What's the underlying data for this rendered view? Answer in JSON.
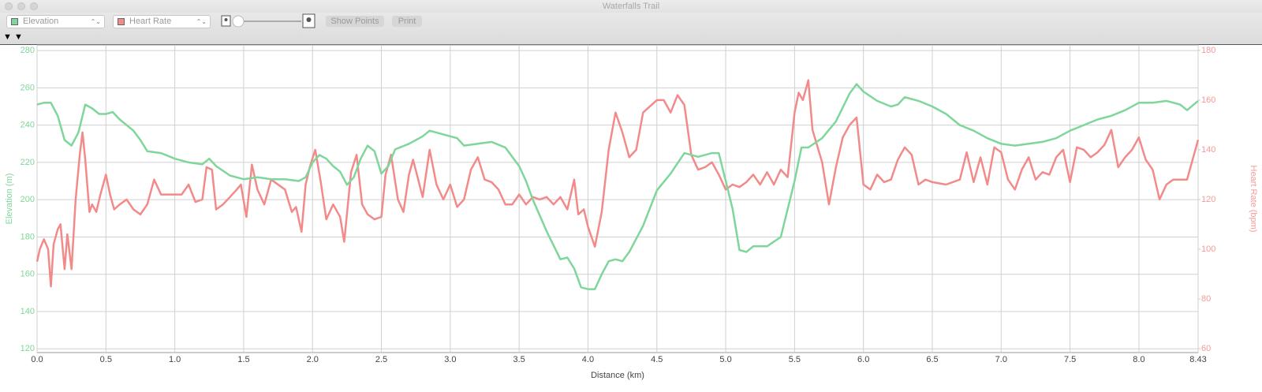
{
  "window": {
    "title": "Waterfalls Trail"
  },
  "toolbar": {
    "left_select": "Elevation",
    "right_select": "Heart Rate",
    "show_points": "Show Points",
    "print": "Print"
  },
  "chart_data": {
    "type": "line",
    "xlabel": "Distance (km)",
    "ylabel": "Elevation (m)",
    "y2label": "Heart Rate (bpm)",
    "xlim": [
      0,
      8.43
    ],
    "xticks": [
      {
        "value": 0,
        "label": "0.0"
      },
      0.5,
      {
        "value": 1,
        "label": "1.0"
      },
      1.5,
      {
        "value": 2,
        "label": "2.0"
      },
      2.5,
      {
        "value": 3,
        "label": "3.0"
      },
      3.5,
      {
        "value": 4,
        "label": "4.0"
      },
      4.5,
      {
        "value": 5,
        "label": "5.0"
      },
      5.5,
      {
        "value": 6,
        "label": "6.0"
      },
      6.5,
      {
        "value": 7,
        "label": "7.0"
      },
      7.5,
      {
        "value": 8,
        "label": "8.0"
      },
      8.43
    ],
    "ylim": [
      118,
      283
    ],
    "yticks": [
      120,
      140,
      160,
      180,
      200,
      220,
      240,
      260,
      280
    ],
    "y2lim": [
      58.4,
      182.2
    ],
    "y2ticks": [
      60,
      80,
      100,
      120,
      140,
      160,
      180
    ],
    "grid": true,
    "series": [
      {
        "name": "Elevation",
        "color": "#7fd69a",
        "x": [
          0,
          0.05,
          0.1,
          0.15,
          0.2,
          0.25,
          0.3,
          0.35,
          0.4,
          0.45,
          0.5,
          0.55,
          0.6,
          0.7,
          0.75,
          0.8,
          0.9,
          1.0,
          1.1,
          1.2,
          1.25,
          1.3,
          1.4,
          1.5,
          1.6,
          1.7,
          1.8,
          1.9,
          1.95,
          2.0,
          2.05,
          2.1,
          2.15,
          2.2,
          2.25,
          2.3,
          2.35,
          2.4,
          2.45,
          2.5,
          2.55,
          2.6,
          2.7,
          2.8,
          2.85,
          2.9,
          3.0,
          3.05,
          3.1,
          3.2,
          3.3,
          3.4,
          3.5,
          3.55,
          3.6,
          3.7,
          3.8,
          3.85,
          3.9,
          3.95,
          4.0,
          4.05,
          4.1,
          4.15,
          4.2,
          4.25,
          4.3,
          4.4,
          4.5,
          4.6,
          4.7,
          4.8,
          4.9,
          4.95,
          5.0,
          5.05,
          5.1,
          5.15,
          5.2,
          5.3,
          5.4,
          5.5,
          5.55,
          5.6,
          5.7,
          5.8,
          5.9,
          5.95,
          6.0,
          6.1,
          6.2,
          6.25,
          6.3,
          6.4,
          6.5,
          6.6,
          6.7,
          6.8,
          6.9,
          7.0,
          7.1,
          7.2,
          7.3,
          7.4,
          7.5,
          7.6,
          7.7,
          7.8,
          7.9,
          8.0,
          8.1,
          8.2,
          8.3,
          8.35,
          8.43
        ],
        "values": [
          251,
          252,
          252,
          245,
          232,
          229,
          236,
          251,
          249,
          246,
          246,
          247,
          243,
          237,
          232,
          226,
          225,
          222,
          220,
          219,
          222,
          218,
          213,
          211,
          212,
          211,
          211,
          210,
          212,
          220,
          224,
          222,
          218,
          215,
          208,
          212,
          222,
          229,
          226,
          214,
          218,
          227,
          230,
          234,
          237,
          236,
          234,
          233,
          229,
          230,
          231,
          228,
          218,
          210,
          200,
          183,
          168,
          169,
          163,
          153,
          152,
          152,
          160,
          167,
          168,
          167,
          172,
          186,
          205,
          214,
          225,
          223,
          225,
          225,
          210,
          195,
          173,
          172,
          175,
          175,
          180,
          210,
          228,
          228,
          233,
          242,
          257,
          262,
          258,
          253,
          250,
          251,
          255,
          253,
          250,
          246,
          240,
          237,
          233,
          230,
          229,
          230,
          231,
          233,
          237,
          240,
          243,
          245,
          248,
          252,
          252,
          253,
          251,
          248,
          253
        ]
      },
      {
        "name": "Heart Rate",
        "color": "#f38a8a",
        "axis": "y2",
        "x": [
          0,
          0.02,
          0.05,
          0.08,
          0.1,
          0.12,
          0.15,
          0.17,
          0.2,
          0.22,
          0.25,
          0.28,
          0.31,
          0.33,
          0.35,
          0.38,
          0.4,
          0.43,
          0.46,
          0.5,
          0.53,
          0.56,
          0.6,
          0.65,
          0.7,
          0.75,
          0.8,
          0.85,
          0.9,
          1.0,
          1.05,
          1.1,
          1.15,
          1.2,
          1.23,
          1.27,
          1.3,
          1.35,
          1.4,
          1.45,
          1.48,
          1.52,
          1.56,
          1.6,
          1.65,
          1.7,
          1.8,
          1.85,
          1.88,
          1.92,
          1.95,
          1.98,
          2.02,
          2.06,
          2.1,
          2.15,
          2.2,
          2.23,
          2.28,
          2.32,
          2.36,
          2.4,
          2.45,
          2.5,
          2.53,
          2.57,
          2.62,
          2.66,
          2.7,
          2.73,
          2.8,
          2.85,
          2.9,
          2.95,
          3.0,
          3.05,
          3.1,
          3.15,
          3.2,
          3.25,
          3.3,
          3.35,
          3.4,
          3.45,
          3.5,
          3.55,
          3.6,
          3.65,
          3.7,
          3.75,
          3.8,
          3.85,
          3.9,
          3.93,
          3.97,
          4.0,
          4.05,
          4.1,
          4.15,
          4.2,
          4.25,
          4.3,
          4.35,
          4.4,
          4.5,
          4.55,
          4.6,
          4.65,
          4.7,
          4.75,
          4.8,
          4.85,
          4.9,
          4.95,
          5.0,
          5.05,
          5.1,
          5.15,
          5.2,
          5.25,
          5.3,
          5.35,
          5.4,
          5.45,
          5.5,
          5.53,
          5.56,
          5.6,
          5.63,
          5.7,
          5.75,
          5.8,
          5.85,
          5.9,
          5.95,
          6.0,
          6.05,
          6.1,
          6.15,
          6.2,
          6.25,
          6.3,
          6.35,
          6.4,
          6.45,
          6.5,
          6.6,
          6.7,
          6.75,
          6.8,
          6.85,
          6.9,
          6.95,
          7.0,
          7.05,
          7.1,
          7.15,
          7.2,
          7.25,
          7.3,
          7.35,
          7.4,
          7.45,
          7.5,
          7.55,
          7.6,
          7.65,
          7.7,
          7.75,
          7.8,
          7.85,
          7.9,
          7.95,
          8.0,
          8.05,
          8.1,
          8.15,
          8.2,
          8.25,
          8.3,
          8.35,
          8.43
        ],
        "values": [
          95,
          100,
          104,
          100,
          85,
          102,
          108,
          110,
          92,
          106,
          92,
          120,
          138,
          147,
          136,
          115,
          118,
          115,
          122,
          130,
          122,
          116,
          118,
          120,
          116,
          114,
          118,
          128,
          122,
          122,
          122,
          126,
          119,
          120,
          133,
          132,
          116,
          118,
          121,
          124,
          126,
          113,
          134,
          124,
          118,
          128,
          124,
          115,
          117,
          107,
          126,
          133,
          140,
          127,
          112,
          118,
          113,
          103,
          131,
          138,
          118,
          114,
          112,
          113,
          130,
          138,
          120,
          115,
          130,
          136,
          121,
          140,
          126,
          120,
          126,
          117,
          120,
          132,
          137,
          128,
          127,
          124,
          118,
          118,
          122,
          118,
          121,
          120,
          121,
          118,
          121,
          116,
          128,
          114,
          116,
          109,
          101,
          115,
          140,
          155,
          147,
          137,
          140,
          155,
          160,
          160,
          155,
          162,
          158,
          138,
          132,
          133,
          135,
          130,
          124,
          126,
          125,
          127,
          130,
          126,
          131,
          126,
          132,
          129,
          155,
          163,
          160,
          168,
          148,
          135,
          118,
          133,
          145,
          150,
          153,
          126,
          124,
          130,
          127,
          128,
          136,
          141,
          138,
          126,
          128,
          127,
          126,
          128,
          139,
          127,
          137,
          126,
          141,
          139,
          128,
          124,
          132,
          137,
          128,
          131,
          130,
          137,
          140,
          127,
          141,
          140,
          137,
          139,
          142,
          148,
          133,
          137,
          140,
          145,
          136,
          132,
          120,
          126,
          128,
          128,
          128,
          144
        ]
      }
    ]
  }
}
